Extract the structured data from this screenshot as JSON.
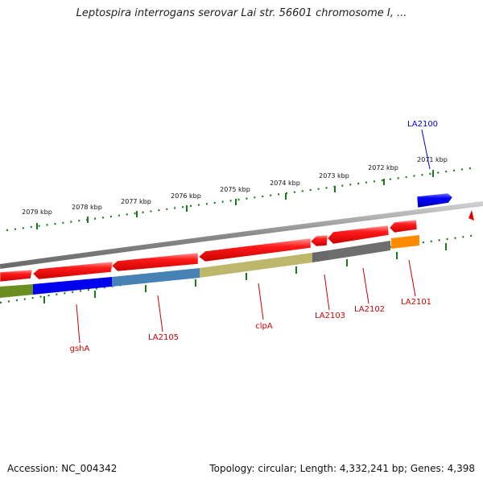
{
  "title": "Leptospira interrogans serovar Lai str. 56601 chromosome I, ...",
  "accession": "Accession: NC_004342",
  "topology": "Topology: circular; Length: 4,332,241 bp; Genes: 4,398",
  "colors": {
    "backbone": "#7a7a7a",
    "tick": "#1a7a1a",
    "gene_forward": "#e60000",
    "label_red": "#cc0000",
    "label_blue": "#0000cc"
  },
  "scale_labels": [
    {
      "text": "2079 kbp",
      "kbp": 2079
    },
    {
      "text": "2078 kbp",
      "kbp": 2078
    },
    {
      "text": "2077 kbp",
      "kbp": 2077
    },
    {
      "text": "2076 kbp",
      "kbp": 2076
    },
    {
      "text": "2075 kbp",
      "kbp": 2075
    },
    {
      "text": "2074 kbp",
      "kbp": 2074
    },
    {
      "text": "2073 kbp",
      "kbp": 2073
    },
    {
      "text": "2072 kbp",
      "kbp": 2072
    },
    {
      "text": "2071 kbp",
      "kbp": 2071
    }
  ],
  "gene_labels": [
    {
      "text": "gshA",
      "color": "#cc0000"
    },
    {
      "text": "LA2105",
      "color": "#cc0000"
    },
    {
      "text": "clpA",
      "color": "#cc0000"
    },
    {
      "text": "LA2103",
      "color": "#cc0000"
    },
    {
      "text": "LA2102",
      "color": "#cc0000"
    },
    {
      "text": "LA2101",
      "color": "#cc0000"
    },
    {
      "text": "LA2100",
      "color": "#0000cc"
    }
  ],
  "cog_colors": [
    "#6b8e23",
    "#0000ee",
    "#4682b4",
    "#bdb76b",
    "#696969",
    "#ff8c00"
  ]
}
